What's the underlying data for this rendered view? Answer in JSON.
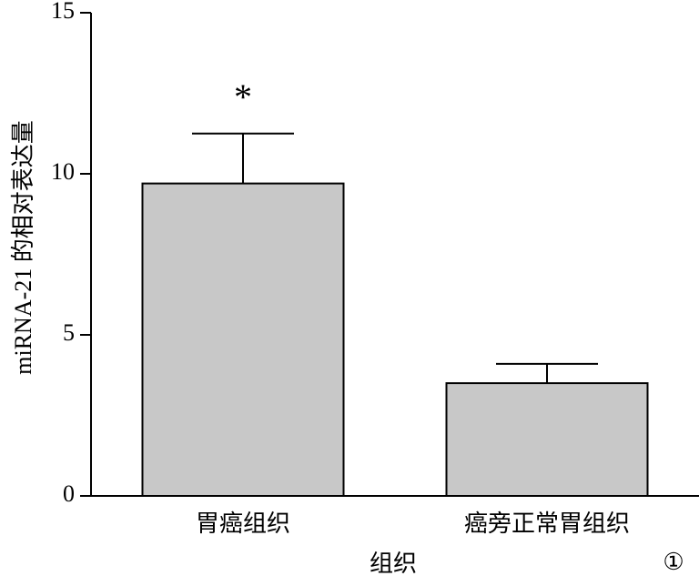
{
  "chart_data": {
    "type": "bar",
    "y_label": "miRNA-21 的相对表达量",
    "x_label": "组织",
    "categories": [
      "胃癌组织",
      "癌旁正常胃组织"
    ],
    "values": [
      9.7,
      3.5
    ],
    "errors": [
      1.55,
      0.6
    ],
    "color": "#c8c8c8",
    "ylim": [
      0,
      15
    ],
    "yticks": [
      0,
      5,
      10,
      15
    ],
    "annotations": [
      "*",
      "①"
    ]
  }
}
